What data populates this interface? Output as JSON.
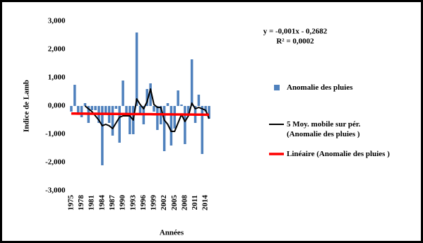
{
  "chart_data": {
    "type": "bar",
    "y_label": "Indice de Lamb",
    "x_label": "Années",
    "annotations": [
      "y = -0,001x - 0,2682",
      "R² = 0,0002"
    ],
    "categories": [
      1975,
      null,
      null,
      1978,
      null,
      null,
      1981,
      null,
      null,
      1984,
      null,
      null,
      1987,
      null,
      null,
      1990,
      null,
      null,
      1993,
      null,
      null,
      1996,
      null,
      null,
      1999,
      null,
      null,
      2002,
      null,
      null,
      2005,
      null,
      null,
      2008,
      null,
      null,
      2011,
      null,
      null,
      2014,
      null
    ],
    "series": [
      {
        "name": "Anomalie des pluies",
        "kind": "bar",
        "color": "#4f81bd",
        "values": [
          -0.2,
          0.75,
          -0.3,
          -0.4,
          0.1,
          -0.6,
          -0.15,
          -0.15,
          -0.6,
          -2.1,
          -0.3,
          -0.6,
          -1.05,
          -0.1,
          -1.3,
          0.9,
          -0.3,
          -1.0,
          -1.0,
          2.6,
          -0.3,
          -0.65,
          0.6,
          0.8,
          -0.2,
          -0.85,
          -0.65,
          -1.6,
          0.1,
          -1.4,
          -0.8,
          0.55,
          0.05,
          -1.35,
          -0.3,
          1.65,
          -0.6,
          0.4,
          -1.7,
          -0.2,
          -0.45
        ]
      },
      {
        "name": "5 Moy. mobile sur pér. (Anomalie des pluies )",
        "kind": "line",
        "color": "#000000",
        "values": [
          null,
          null,
          null,
          null,
          0.0,
          -0.1,
          -0.2,
          -0.35,
          -0.5,
          -0.7,
          -0.65,
          -0.7,
          -0.8,
          -0.6,
          -0.4,
          -0.35,
          -0.35,
          -0.35,
          -0.5,
          0.25,
          0.05,
          -0.1,
          0.15,
          0.6,
          0.05,
          -0.05,
          -0.05,
          -0.5,
          -0.65,
          -0.9,
          -0.9,
          -0.6,
          -0.3,
          -0.55,
          -0.35,
          0.1,
          -0.1,
          -0.05,
          -0.1,
          -0.15,
          -0.45
        ]
      },
      {
        "name": "Linéaire (Anomalie des pluies )",
        "kind": "line",
        "color": "#ff0000",
        "values": [
          -0.269,
          -0.27,
          -0.271,
          -0.272,
          -0.273,
          -0.274,
          -0.275,
          -0.276,
          -0.277,
          -0.278,
          -0.279,
          -0.28,
          -0.281,
          -0.282,
          -0.283,
          -0.284,
          -0.285,
          -0.286,
          -0.287,
          -0.288,
          -0.289,
          -0.29,
          -0.291,
          -0.292,
          -0.293,
          -0.294,
          -0.295,
          -0.296,
          -0.297,
          -0.298,
          -0.299,
          -0.3,
          -0.301,
          -0.302,
          -0.303,
          -0.304,
          -0.305,
          -0.306,
          -0.307,
          -0.308,
          -0.309
        ]
      }
    ],
    "ylim": [
      -3,
      3
    ],
    "yticks": [
      {
        "value": -3,
        "label": "-3,000"
      },
      {
        "value": -2,
        "label": "-2,000"
      },
      {
        "value": -1,
        "label": "-1,000"
      },
      {
        "value": 0,
        "label": "0,000"
      },
      {
        "value": 1,
        "label": "1,000"
      },
      {
        "value": 2,
        "label": "2,000"
      },
      {
        "value": 3,
        "label": "3,000"
      }
    ],
    "grid": false
  }
}
